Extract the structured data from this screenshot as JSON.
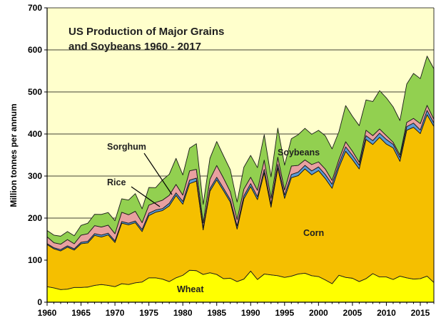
{
  "chart_data": {
    "type": "area",
    "stacked": true,
    "title_lines": [
      "US Production of Major Grains",
      "and Soybeans  1960 - 2017"
    ],
    "ylabel": "Million tonnes per annum",
    "xlabel": "",
    "xlim": [
      1960,
      2017
    ],
    "ylim": [
      0,
      700
    ],
    "x_ticks": [
      1960,
      1965,
      1970,
      1975,
      1980,
      1985,
      1990,
      1995,
      2000,
      2005,
      2010,
      2015
    ],
    "y_ticks": [
      0,
      100,
      200,
      300,
      400,
      500,
      600,
      700
    ],
    "grid": true,
    "x": [
      1960,
      1961,
      1962,
      1963,
      1964,
      1965,
      1966,
      1967,
      1968,
      1969,
      1970,
      1971,
      1972,
      1973,
      1974,
      1975,
      1976,
      1977,
      1978,
      1979,
      1980,
      1981,
      1982,
      1983,
      1984,
      1985,
      1986,
      1987,
      1988,
      1989,
      1990,
      1991,
      1992,
      1993,
      1994,
      1995,
      1996,
      1997,
      1998,
      1999,
      2000,
      2001,
      2002,
      2003,
      2004,
      2005,
      2006,
      2007,
      2008,
      2009,
      2010,
      2011,
      2012,
      2013,
      2014,
      2015,
      2016,
      2017
    ],
    "series": [
      {
        "name": "Wheat",
        "color": "#ffff00",
        "values": [
          37,
          34,
          30,
          31,
          35,
          35,
          36,
          40,
          42,
          40,
          37,
          44,
          42,
          46,
          48,
          58,
          58,
          55,
          49,
          58,
          64,
          76,
          75,
          66,
          70,
          66,
          56,
          57,
          49,
          55,
          74,
          54,
          67,
          65,
          63,
          59,
          62,
          67,
          69,
          63,
          61,
          53,
          44,
          64,
          59,
          57,
          49,
          56,
          68,
          60,
          60,
          54,
          62,
          58,
          55,
          56,
          62,
          47
        ]
      },
      {
        "name": "Corn",
        "color": "#f5bf00",
        "values": [
          100,
          93,
          92,
          100,
          89,
          104,
          105,
          119,
          113,
          120,
          105,
          144,
          142,
          143,
          120,
          148,
          156,
          163,
          180,
          196,
          169,
          206,
          213,
          106,
          194,
          225,
          209,
          181,
          125,
          191,
          201,
          190,
          241,
          161,
          256,
          188,
          234,
          234,
          248,
          240,
          252,
          241,
          227,
          256,
          300,
          282,
          268,
          331,
          307,
          332,
          316,
          313,
          273,
          351,
          361,
          345,
          384,
          371
        ]
      },
      {
        "name": "Rice",
        "color": "#5b9bd5",
        "values": [
          2.5,
          2.5,
          3,
          3,
          3,
          3.5,
          3.8,
          4,
          4.7,
          4.2,
          3.8,
          3.9,
          3.9,
          4.2,
          5.1,
          5.8,
          5.3,
          4.5,
          6.1,
          6,
          6.6,
          8.3,
          7,
          4.5,
          6.2,
          6.1,
          6.1,
          5.9,
          7.3,
          7,
          7.1,
          7,
          8.1,
          7.1,
          9,
          7.9,
          7.8,
          8.3,
          8.4,
          9.3,
          8.7,
          9.7,
          9.6,
          9.1,
          10.5,
          10.1,
          8.8,
          9,
          9.2,
          10,
          11,
          8.4,
          9,
          8.6,
          10,
          8.7,
          10.2,
          8.1
        ]
      },
      {
        "name": "Sorghum",
        "color": "#e8a0a0",
        "values": [
          16,
          12,
          13,
          15,
          12,
          17,
          18,
          19,
          19,
          19,
          17,
          22,
          20,
          23,
          16,
          19,
          18,
          20,
          19,
          20,
          15,
          22,
          21,
          12,
          22,
          28,
          24,
          19,
          15,
          16,
          15,
          15,
          22,
          14,
          17,
          12,
          20,
          16,
          13,
          15,
          12,
          13,
          9,
          10,
          12,
          10,
          7,
          13,
          12,
          10,
          9,
          5,
          6,
          10,
          11,
          15,
          12,
          9
        ]
      },
      {
        "name": "Soybeans",
        "color": "#92d050",
        "values": [
          15,
          18,
          19,
          19,
          19,
          23,
          25,
          27,
          30,
          30,
          31,
          32,
          35,
          42,
          33,
          42,
          35,
          48,
          50,
          62,
          48,
          54,
          61,
          44,
          50,
          57,
          53,
          52,
          42,
          52,
          52,
          54,
          60,
          51,
          69,
          59,
          65,
          73,
          75,
          72,
          75,
          79,
          75,
          66,
          86,
          83,
          87,
          72,
          81,
          91,
          90,
          84,
          82,
          91,
          107,
          107,
          117,
          120
        ]
      }
    ],
    "annotations": [
      "Wheat",
      "Corn",
      "Soybeans",
      "Sorghum",
      "Rice"
    ]
  }
}
